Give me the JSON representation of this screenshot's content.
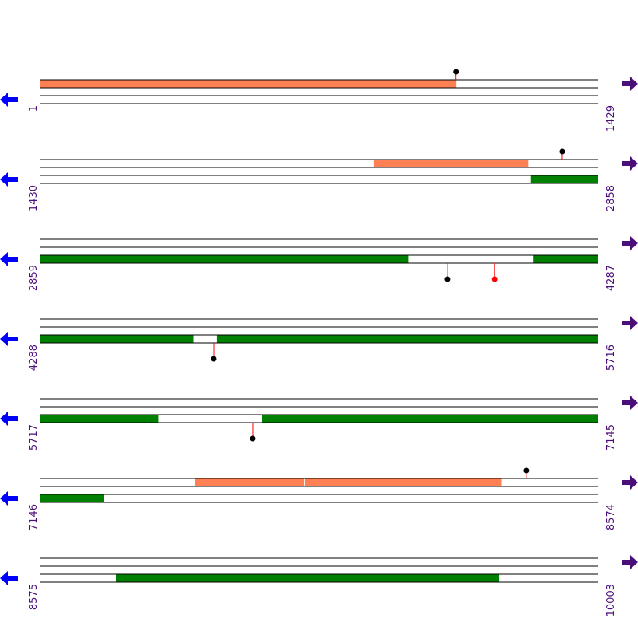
{
  "rows": [
    {
      "start": "1",
      "end": "1429",
      "features": [
        {
          "strand": "forward",
          "color": "#ff8153",
          "from": 1,
          "to": 1066
        }
      ],
      "pins": [
        {
          "pos": 1066,
          "side": "top",
          "color": "#000000"
        }
      ]
    },
    {
      "start": "1430",
      "end": "2858",
      "features": [
        {
          "strand": "forward",
          "color": "#ff8153",
          "from": 2285,
          "to": 2679
        },
        {
          "strand": "reverse",
          "color": "#008000",
          "from": 2687,
          "to": 2858
        }
      ],
      "pins": [
        {
          "pos": 2767,
          "side": "top",
          "color": "#000000"
        }
      ]
    },
    {
      "start": "2859",
      "end": "4287",
      "features": [
        {
          "strand": "reverse",
          "color": "#008000",
          "from": 2859,
          "to": 3802
        },
        {
          "strand": "reverse",
          "color": "#008000",
          "from": 4121,
          "to": 4287
        }
      ],
      "pins": [
        {
          "pos": 3902,
          "side": "bottom",
          "color": "#000000"
        },
        {
          "pos": 4023,
          "side": "bottom",
          "color": "#ff0000"
        }
      ]
    },
    {
      "start": "4288",
      "end": "5716",
      "features": [
        {
          "strand": "reverse",
          "color": "#008000",
          "from": 4288,
          "to": 4680
        },
        {
          "strand": "reverse",
          "color": "#008000",
          "from": 4741,
          "to": 5716
        }
      ],
      "pins": [
        {
          "pos": 4733,
          "side": "bottom",
          "color": "#000000"
        }
      ]
    },
    {
      "start": "5717",
      "end": "7145",
      "features": [
        {
          "strand": "reverse",
          "color": "#008000",
          "from": 5717,
          "to": 6019
        },
        {
          "strand": "reverse",
          "color": "#008000",
          "from": 6286,
          "to": 7145
        }
      ],
      "pins": [
        {
          "pos": 6262,
          "side": "bottom",
          "color": "#000000"
        }
      ]
    },
    {
      "start": "7146",
      "end": "8574",
      "features": [
        {
          "strand": "forward",
          "color": "#ff8153",
          "from": 7542,
          "to": 7821
        },
        {
          "strand": "forward",
          "color": "#ff8153",
          "from": 7824,
          "to": 8326
        },
        {
          "strand": "reverse",
          "color": "#008000",
          "from": 7146,
          "to": 7309
        }
      ],
      "pins": [
        {
          "pos": 8391,
          "side": "top",
          "color": "#000000"
        }
      ]
    },
    {
      "start": "8575",
      "end": "10003",
      "features": [
        {
          "strand": "reverse",
          "color": "#008000",
          "from": 8769,
          "to": 9750
        }
      ],
      "pins": []
    }
  ]
}
